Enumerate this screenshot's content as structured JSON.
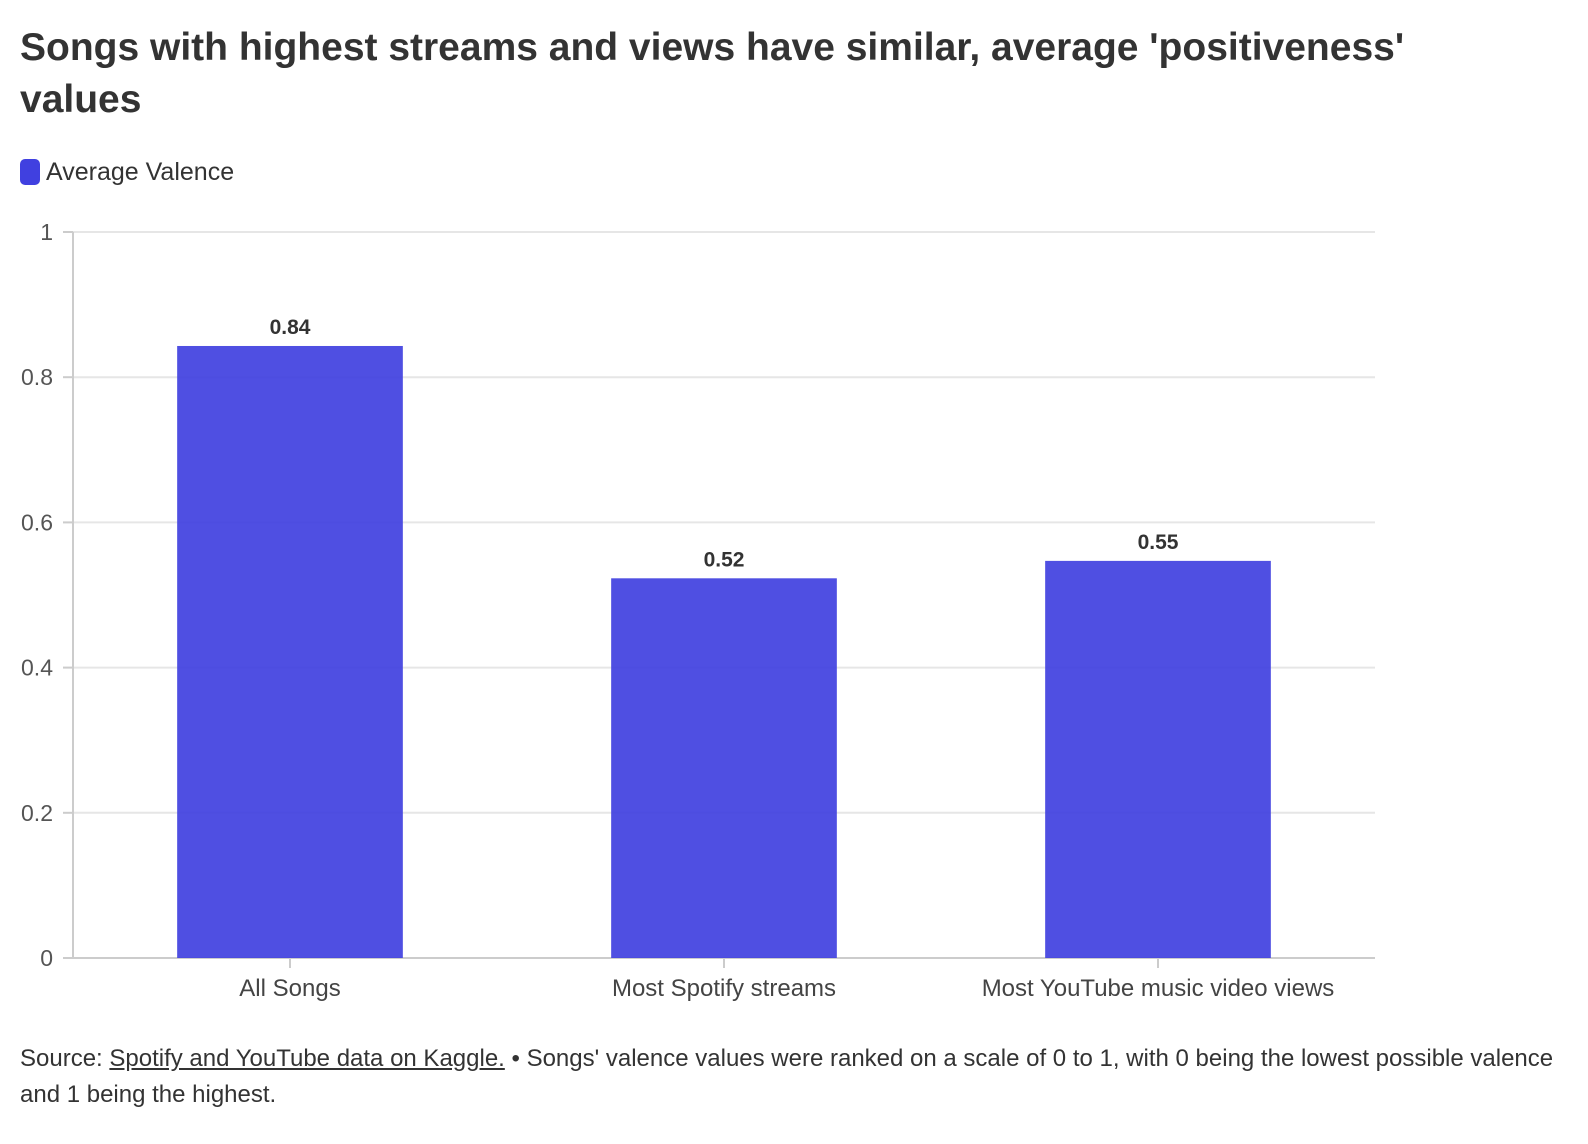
{
  "title": "Songs with highest streams and views have similar, average 'positiveness' values",
  "legend": {
    "label": "Average Valence"
  },
  "colors": {
    "bar": "#4040e0",
    "grid": "#e6e6e6",
    "axis": "#cccccc",
    "text": "#333333"
  },
  "chart_data": {
    "type": "bar",
    "title": "Songs with highest streams and views have similar, average 'positiveness' values",
    "categories": [
      "All Songs",
      "Most Spotify streams",
      "Most YouTube music video views"
    ],
    "series": [
      {
        "name": "Average Valence",
        "values": [
          0.843,
          0.523,
          0.547
        ],
        "labels": [
          "0.84",
          "0.52",
          "0.55"
        ]
      }
    ],
    "yticks": [
      "0",
      "0.2",
      "0.4",
      "0.6",
      "0.8",
      "1"
    ],
    "ylim": [
      0,
      1
    ],
    "grid": true,
    "legend_position": "top-left"
  },
  "footer": {
    "prefix": "Source: ",
    "link_text": "Spotify and YouTube data on Kaggle.",
    "note": " • Songs' valence values were ranked on a scale of 0 to 1, with 0 being the lowest possible valence and 1 being the highest."
  }
}
